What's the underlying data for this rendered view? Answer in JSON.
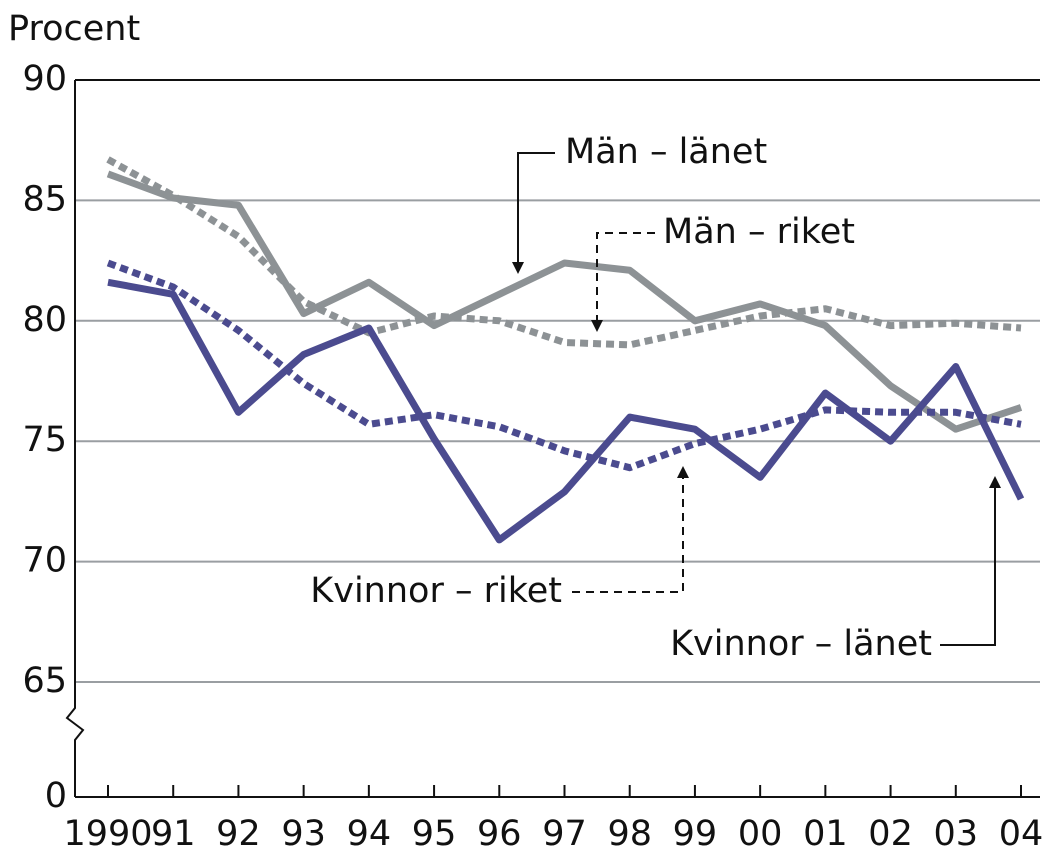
{
  "chart_data": {
    "type": "line",
    "y_label": "Procent",
    "categories": [
      "1990",
      "91",
      "92",
      "93",
      "94",
      "95",
      "96",
      "97",
      "98",
      "99",
      "00",
      "01",
      "02",
      "03",
      "04"
    ],
    "series": [
      {
        "name": "Män – länet",
        "color": "#8d9295",
        "style": "solid",
        "values": [
          86.1,
          85.1,
          84.8,
          80.3,
          81.6,
          79.8,
          81.1,
          82.4,
          82.1,
          80.0,
          80.7,
          79.8,
          77.3,
          75.5,
          76.4
        ]
      },
      {
        "name": "Män – riket",
        "color": "#8d9295",
        "style": "dotted",
        "values": [
          86.7,
          85.2,
          83.5,
          80.8,
          79.5,
          80.2,
          80.0,
          79.1,
          79.0,
          79.6,
          80.2,
          80.5,
          79.8,
          79.9,
          79.7
        ]
      },
      {
        "name": "Kvinnor – länet",
        "color": "#4b4b8f",
        "style": "solid",
        "values": [
          81.6,
          81.1,
          76.2,
          78.6,
          79.7,
          75.1,
          70.9,
          72.9,
          76.0,
          75.5,
          73.5,
          77.0,
          75.0,
          78.1,
          72.6
        ]
      },
      {
        "name": "Kvinnor – riket",
        "color": "#4b4b8f",
        "style": "dotted",
        "values": [
          82.4,
          81.4,
          79.6,
          77.4,
          75.7,
          76.1,
          75.6,
          74.6,
          73.9,
          74.9,
          75.5,
          76.3,
          76.2,
          76.2,
          75.7
        ]
      }
    ],
    "ylim": [
      0,
      90
    ],
    "axis_break": [
      0,
      65
    ],
    "yticks": [
      0,
      65,
      70,
      75,
      80,
      85,
      90
    ],
    "grid": true
  }
}
